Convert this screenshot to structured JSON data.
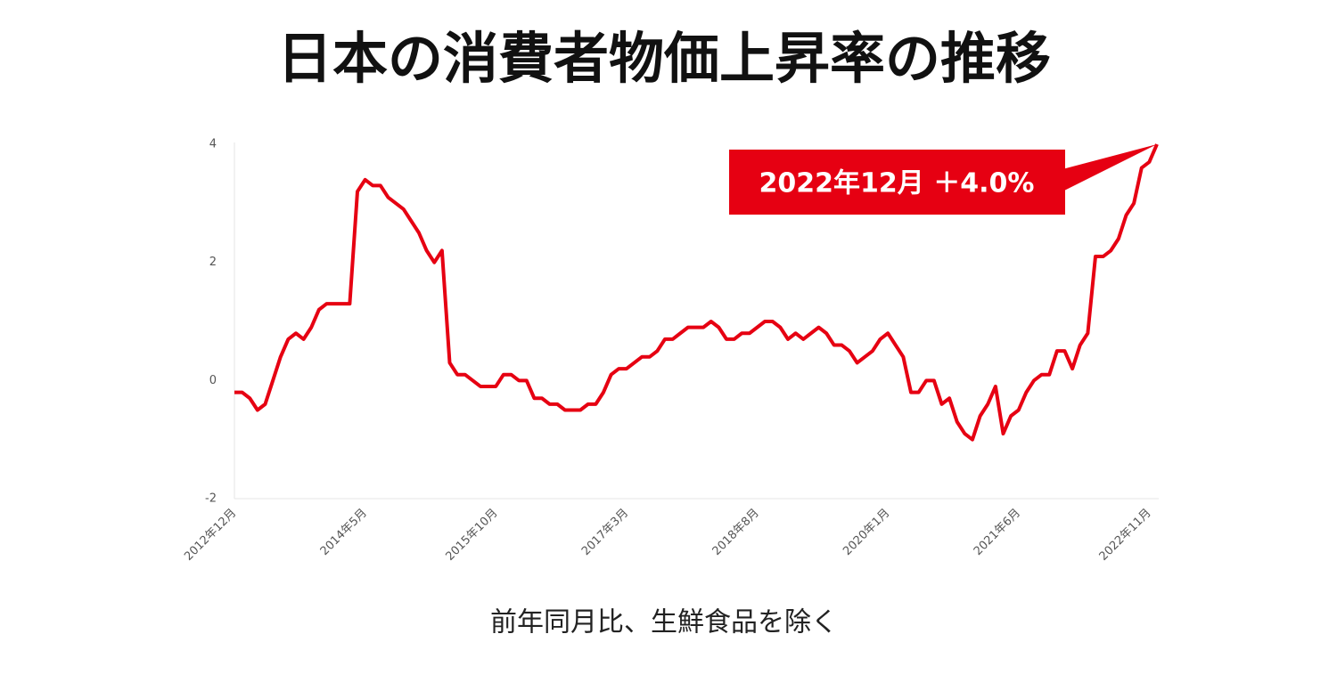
{
  "chart_data": {
    "type": "line",
    "title": "日本の消費者物価上昇率の推移",
    "subtitle": "前年同月比、生鮮食品を除く",
    "annotation": "2022年12月 ＋4.0%",
    "color": "#e60012",
    "categories": [
      "2012年12月",
      null,
      null,
      null,
      null,
      null,
      null,
      null,
      null,
      null,
      null,
      null,
      null,
      null,
      null,
      null,
      null,
      "2014年5月",
      null,
      null,
      null,
      null,
      null,
      null,
      null,
      null,
      null,
      null,
      null,
      null,
      null,
      null,
      null,
      null,
      "2015年10月",
      null,
      null,
      null,
      null,
      null,
      null,
      null,
      null,
      null,
      null,
      null,
      null,
      null,
      null,
      null,
      null,
      "2017年3月",
      null,
      null,
      null,
      null,
      null,
      null,
      null,
      null,
      null,
      null,
      null,
      null,
      null,
      null,
      null,
      null,
      "2018年8月",
      null,
      null,
      null,
      null,
      null,
      null,
      null,
      null,
      null,
      null,
      null,
      null,
      null,
      null,
      null,
      null,
      "2020年1月",
      null,
      null,
      null,
      null,
      null,
      null,
      null,
      null,
      null,
      null,
      null,
      null,
      null,
      null,
      null,
      null,
      "2021年6月",
      null,
      null,
      null,
      null,
      null,
      null,
      null,
      null,
      null,
      null,
      null,
      null,
      null,
      null,
      null,
      null,
      "2022年11月",
      null
    ],
    "values": [
      -0.2,
      -0.2,
      -0.3,
      -0.5,
      -0.4,
      0.0,
      0.4,
      0.7,
      0.8,
      0.7,
      0.9,
      1.2,
      1.3,
      1.3,
      1.3,
      1.3,
      3.2,
      3.4,
      3.3,
      3.3,
      3.1,
      3.0,
      2.9,
      2.7,
      2.5,
      2.2,
      2.0,
      2.2,
      0.3,
      0.1,
      0.1,
      0.0,
      -0.1,
      -0.1,
      -0.1,
      0.1,
      0.1,
      0.0,
      0.0,
      -0.3,
      -0.3,
      -0.4,
      -0.4,
      -0.5,
      -0.5,
      -0.5,
      -0.4,
      -0.4,
      -0.2,
      0.1,
      0.2,
      0.2,
      0.3,
      0.4,
      0.4,
      0.5,
      0.7,
      0.7,
      0.8,
      0.9,
      0.9,
      0.9,
      1.0,
      0.9,
      0.7,
      0.7,
      0.8,
      0.8,
      0.9,
      1.0,
      1.0,
      0.9,
      0.7,
      0.8,
      0.7,
      0.8,
      0.9,
      0.8,
      0.6,
      0.6,
      0.5,
      0.3,
      0.4,
      0.5,
      0.7,
      0.8,
      0.6,
      0.4,
      -0.2,
      -0.2,
      0.0,
      0.0,
      -0.4,
      -0.3,
      -0.7,
      -0.9,
      -1.0,
      -0.6,
      -0.4,
      -0.1,
      -0.9,
      -0.6,
      -0.5,
      -0.2,
      0.0,
      0.1,
      0.1,
      0.5,
      0.5,
      0.2,
      0.6,
      0.8,
      2.1,
      2.1,
      2.2,
      2.4,
      2.8,
      3.0,
      3.6,
      3.7,
      4.0
    ],
    "ylim": [
      -2,
      4
    ],
    "yticks": [
      -2,
      0,
      2,
      4
    ]
  }
}
